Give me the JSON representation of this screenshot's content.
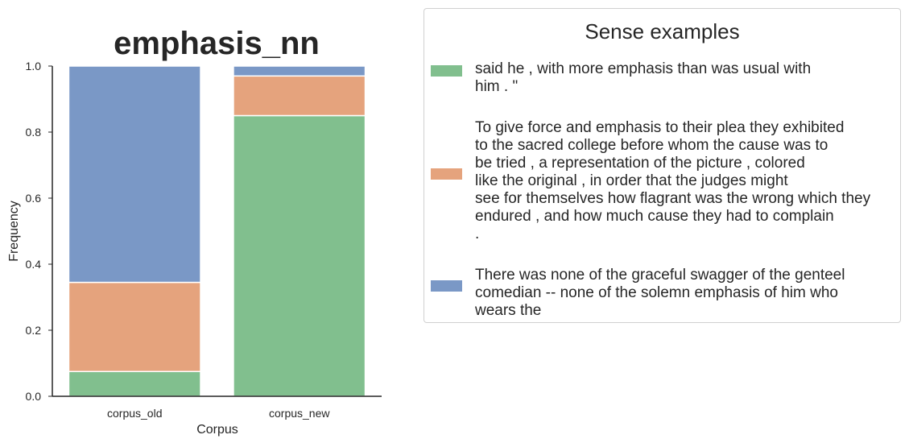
{
  "chart_data": {
    "type": "bar",
    "stacked": true,
    "title": "emphasis_nn",
    "xlabel": "Corpus",
    "ylabel": "Frequency",
    "categories": [
      "corpus_old",
      "corpus_new"
    ],
    "ylim": [
      0,
      1.0
    ],
    "yticks": [
      "0.0",
      "0.2",
      "0.4",
      "0.6",
      "0.8",
      "1.0"
    ],
    "grid": false,
    "series": [
      {
        "color": "#81bf8e",
        "values": [
          0.075,
          0.85
        ]
      },
      {
        "color": "#e5a37d",
        "values": [
          0.27,
          0.12
        ]
      },
      {
        "color": "#7a98c6",
        "values": [
          0.655,
          0.03
        ]
      }
    ],
    "legend": {
      "placement": "right",
      "title": "Sense examples",
      "entries": [
        {
          "color": "#81bf8e",
          "text": "said he , with more emphasis than was usual with\nhim . \""
        },
        {
          "color": "#e5a37d",
          "text": "To give force and emphasis to their plea they exhibited\nto the sacred college before whom the cause was to\nbe tried , a representation of the picture , colored\nlike the original , in order that the judges might\nsee for themselves how flagrant was the wrong which they\nendured , and how much cause they had to complain\n."
        },
        {
          "color": "#7a98c6",
          "text": "There was none of the graceful swagger of the genteel\ncomedian -- none of the solemn emphasis of him who\nwears the"
        }
      ]
    }
  }
}
